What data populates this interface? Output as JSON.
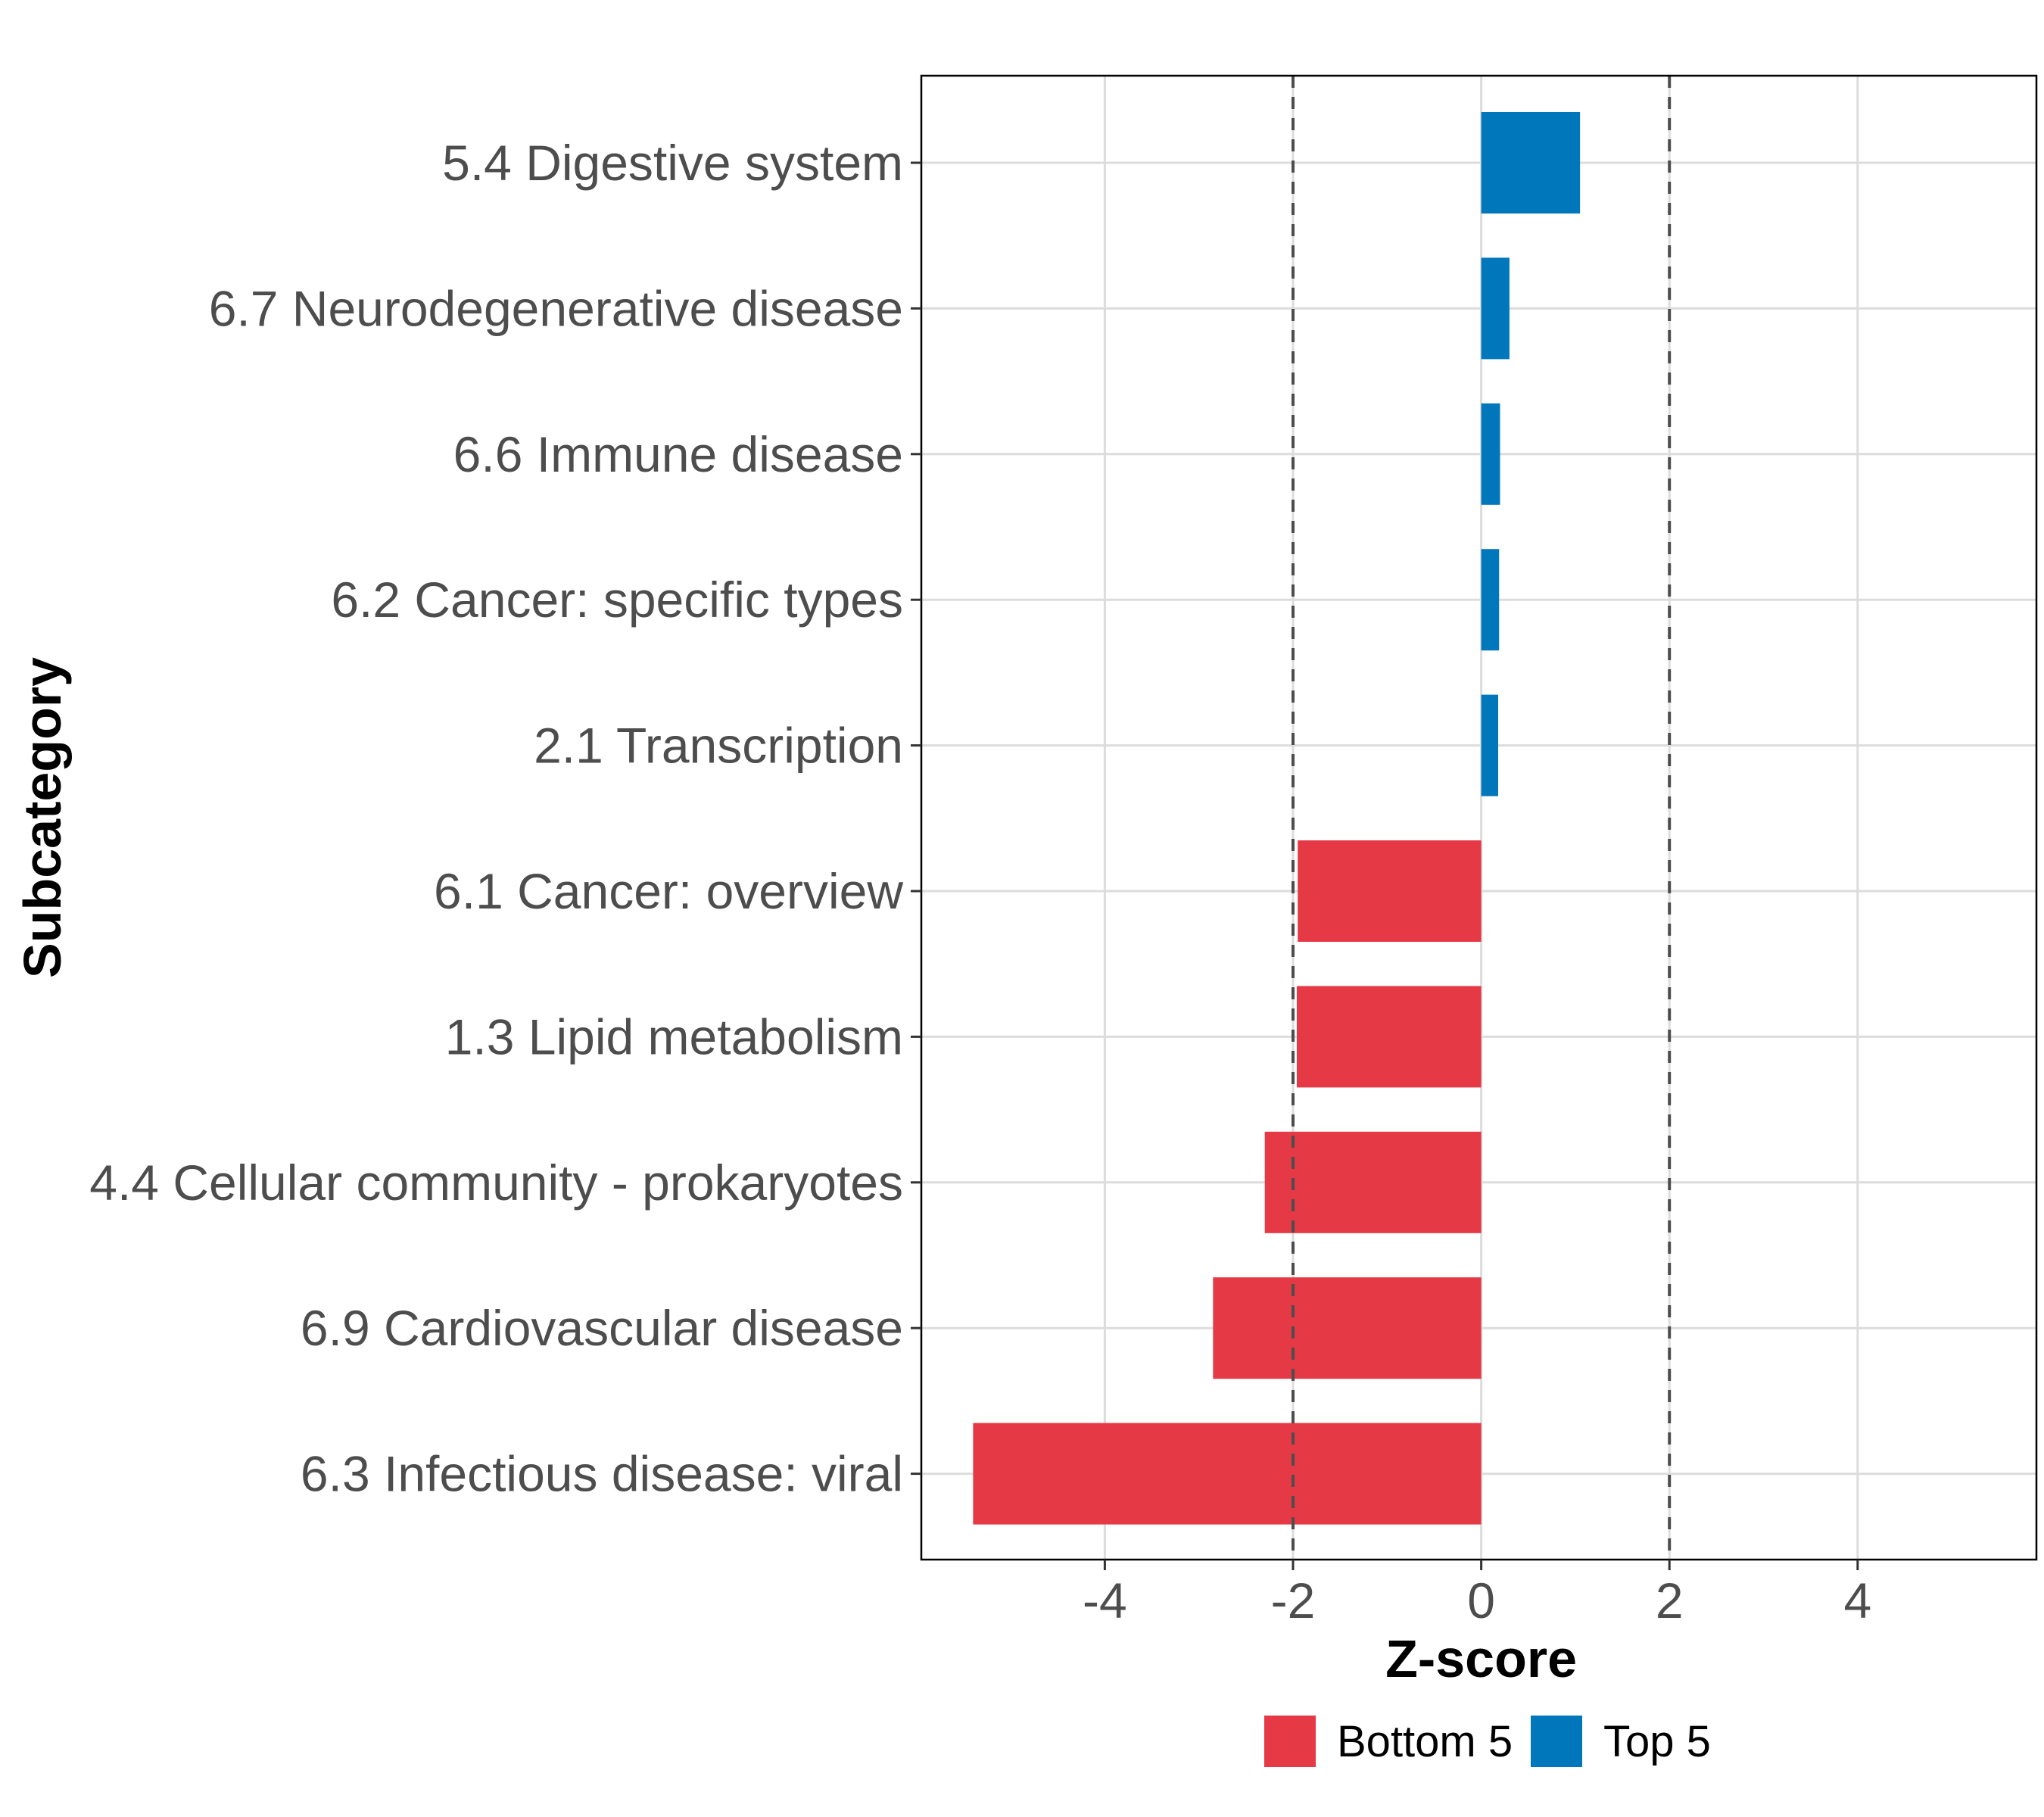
{
  "chart_data": {
    "type": "bar",
    "orientation": "horizontal",
    "title": "",
    "xlabel": "Z-score",
    "ylabel": "Subcategory",
    "xlim": [
      -5.95,
      5.9
    ],
    "xticks": [
      -4,
      -2,
      0,
      2,
      4
    ],
    "xtick_labels": [
      "-4",
      "-2",
      "0",
      "2",
      "4"
    ],
    "reference_lines": [
      -2,
      2
    ],
    "grid": true,
    "legend_position": "bottom",
    "categories": [
      "5.4 Digestive system",
      "6.7 Neurodegenerative disease",
      "6.6 Immune disease",
      "6.2 Cancer: specific types",
      "2.1 Transcription",
      "6.1 Cancer: overview",
      "1.3 Lipid metabolism",
      "4.4 Cellular community - prokaryotes",
      "6.9 Cardiovascular disease",
      "6.3 Infectious disease: viral"
    ],
    "values": [
      1.05,
      0.3,
      0.2,
      0.19,
      0.18,
      -1.95,
      -1.96,
      -2.3,
      -2.85,
      -5.4
    ],
    "groups": [
      "Top 5",
      "Top 5",
      "Top 5",
      "Top 5",
      "Top 5",
      "Bottom 5",
      "Bottom 5",
      "Bottom 5",
      "Bottom 5",
      "Bottom 5"
    ],
    "legend": [
      {
        "name": "Bottom 5",
        "color": "#E63946"
      },
      {
        "name": "Top 5",
        "color": "#0077BB"
      }
    ]
  }
}
